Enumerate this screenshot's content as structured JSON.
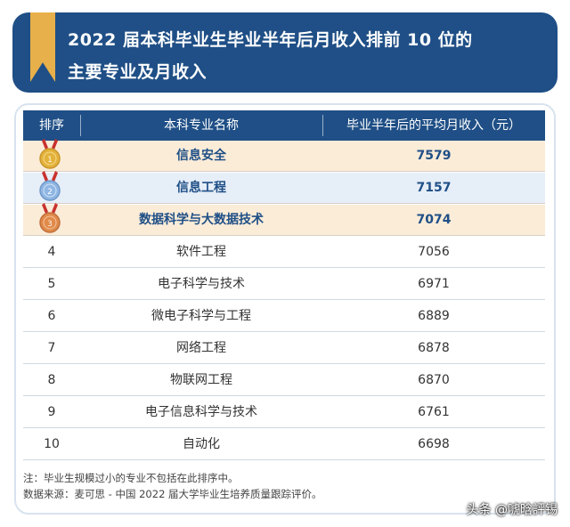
{
  "title": {
    "line1": "2022 届本科毕业生毕业半年后月收入排前 10 位的",
    "line2": "主要专业及月收入"
  },
  "table": {
    "headers": {
      "rank": "排序",
      "major": "本科专业名称",
      "income": "毕业半年后的平均月收入（元）"
    },
    "rows": [
      {
        "rank": "1",
        "major": "信息安全",
        "income": "7579",
        "medal": "gold"
      },
      {
        "rank": "2",
        "major": "信息工程",
        "income": "7157",
        "medal": "silver"
      },
      {
        "rank": "3",
        "major": "数据科学与大数据技术",
        "income": "7074",
        "medal": "bronze"
      },
      {
        "rank": "4",
        "major": "软件工程",
        "income": "7056"
      },
      {
        "rank": "5",
        "major": "电子科学与技术",
        "income": "6971"
      },
      {
        "rank": "6",
        "major": "微电子科学与工程",
        "income": "6889"
      },
      {
        "rank": "7",
        "major": "网络工程",
        "income": "6878"
      },
      {
        "rank": "8",
        "major": "物联网工程",
        "income": "6870"
      },
      {
        "rank": "9",
        "major": "电子信息科学与技术",
        "income": "6761"
      },
      {
        "rank": "10",
        "major": "自动化",
        "income": "6698"
      }
    ]
  },
  "notes": {
    "note": "注：毕业生规模过小的专业不包括在此排序中。",
    "source": "数据来源：麦可思 - 中国 2022 届大学毕业生培养质量跟踪评价。"
  },
  "watermark": "头条 @唬晗評锡",
  "colors": {
    "banner": "#1f4f86",
    "bookmark": "#e8b04a",
    "gold": "#e3b23c",
    "silver": "#8fb6e3",
    "bronze": "#e08a4a",
    "ribbon": "#c8322e"
  }
}
